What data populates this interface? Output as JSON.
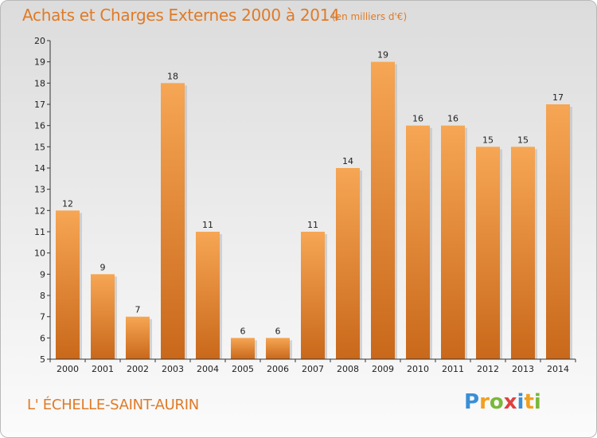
{
  "chart_data": {
    "type": "bar",
    "title": "Achats et Charges Externes 2000 à 2014",
    "subtitle": "(en milliers d'€)",
    "categories": [
      "2000",
      "2001",
      "2002",
      "2003",
      "2004",
      "2005",
      "2006",
      "2007",
      "2008",
      "2009",
      "2010",
      "2011",
      "2012",
      "2013",
      "2014"
    ],
    "values": [
      12,
      9,
      7,
      18,
      11,
      6,
      6,
      11,
      14,
      19,
      16,
      16,
      15,
      15,
      17
    ],
    "ylim": [
      5,
      20
    ],
    "yticks": [
      5,
      6,
      7,
      8,
      9,
      10,
      11,
      12,
      13,
      14,
      15,
      16,
      17,
      18,
      19,
      20
    ],
    "grid": false,
    "legend": "none",
    "bar_color": "#e8822e"
  },
  "location": "L' ÉCHELLE-SAINT-AURIN",
  "logo": {
    "text": "Proxiti",
    "letters": [
      {
        "ch": "P",
        "color": "#3a8fd6"
      },
      {
        "ch": "r",
        "color": "#f0a020"
      },
      {
        "ch": "o",
        "color": "#7ab83a"
      },
      {
        "ch": "x",
        "color": "#e04040"
      },
      {
        "ch": "i",
        "color": "#3a8fd6"
      },
      {
        "ch": "t",
        "color": "#f0a020"
      },
      {
        "ch": "i",
        "color": "#7ab83a"
      }
    ]
  },
  "colors": {
    "accent": "#e07a26",
    "bar_light": "#f6a654",
    "bar_dark": "#c9681a",
    "axis": "#333333"
  }
}
